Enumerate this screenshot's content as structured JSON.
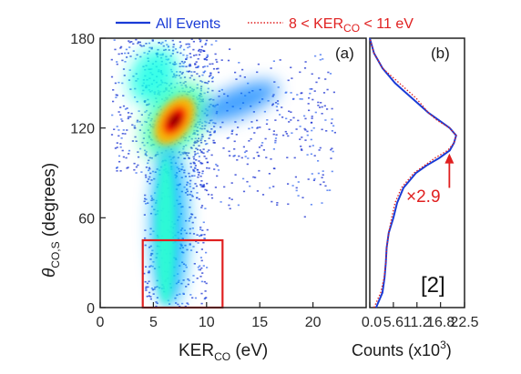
{
  "legend": {
    "all_events": "All Events",
    "selected_prefix": "8 < KER",
    "selected_sub": "CO",
    "selected_suffix": " < 11 eV",
    "all_events_color": "#1a3bd6",
    "selected_color": "#e02020"
  },
  "panel_a": {
    "label": "(a)",
    "xlabel_main": "KER",
    "xlabel_sub": "CO",
    "xlabel_unit": " (eV)",
    "ylabel_theta": "θ",
    "ylabel_sub": "CO,S",
    "ylabel_unit": " (degrees)",
    "x_ticks": [
      "0",
      "5",
      "10",
      "15",
      "20"
    ],
    "y_ticks": [
      "0",
      "60",
      "120",
      "180"
    ],
    "box_color": "#e02020"
  },
  "panel_b": {
    "label": "(b)",
    "xlabel_main": "Counts (x10",
    "xlabel_sup": "3",
    "xlabel_end": ")",
    "x_ticks": [
      "0.0",
      "5.6",
      "11.2",
      "16.8",
      "22.5"
    ],
    "scale_annotation": "×2.9"
  },
  "reference": "[2]",
  "chart_data": [
    {
      "type": "heatmap",
      "title": "",
      "xlabel": "KER_CO (eV)",
      "ylabel": "θ_CO,S (degrees)",
      "xlim": [
        0,
        25
      ],
      "ylim": [
        0,
        180
      ],
      "x_ticks": [
        0,
        5,
        10,
        15,
        20
      ],
      "y_ticks": [
        0,
        60,
        120,
        180
      ],
      "grid": false,
      "colormap": "jet",
      "intensity_features": [
        {
          "feature": "dominant maximum",
          "ker": 7,
          "theta": 125,
          "relative_intensity": 1.0
        },
        {
          "feature": "upper ridge",
          "ker": 5,
          "theta": 155,
          "relative_intensity": 0.55
        },
        {
          "feature": "vertical stem",
          "ker": 6.5,
          "theta_range": [
            0,
            110
          ],
          "relative_intensity": 0.45
        },
        {
          "feature": "right branch",
          "ker_range": [
            9,
            17
          ],
          "theta_range": [
            110,
            165
          ],
          "relative_intensity": 0.25
        }
      ],
      "selection_box": {
        "ker_range": [
          4,
          11.5
        ],
        "theta_range": [
          0,
          45
        ]
      }
    },
    {
      "type": "line",
      "title": "",
      "xlabel": "Counts (x10^3)",
      "ylabel": "θ_CO,S (degrees)",
      "xlim": [
        0,
        22.5
      ],
      "ylim": [
        0,
        180
      ],
      "x_ticks": [
        0,
        5.6,
        11.2,
        16.8,
        22.5
      ],
      "legend_position": "top",
      "series": [
        {
          "name": "All Events",
          "style": "solid",
          "color": "#1a3bd6",
          "theta": [
            0,
            10,
            20,
            30,
            40,
            50,
            60,
            70,
            80,
            90,
            95,
            100,
            105,
            110,
            115,
            120,
            125,
            130,
            135,
            140,
            145,
            150,
            160,
            170,
            180
          ],
          "counts": [
            1.5,
            3.0,
            3.5,
            3.8,
            4.0,
            4.5,
            5.6,
            6.5,
            8.0,
            11.0,
            13.5,
            16.5,
            19.0,
            20.0,
            20.5,
            19.0,
            16.5,
            14.0,
            12.0,
            10.0,
            8.0,
            6.0,
            3.0,
            1.0,
            0.0
          ]
        },
        {
          "name": "8 < KER_CO < 11 eV",
          "style": "dotted",
          "scale_factor": 2.9,
          "color": "#e02020",
          "theta": [
            0,
            10,
            20,
            30,
            40,
            50,
            60,
            70,
            80,
            90,
            95,
            100,
            105,
            110,
            115,
            120,
            125,
            130,
            135,
            140,
            145,
            150,
            155,
            160,
            170,
            180
          ],
          "counts": [
            1.0,
            2.6,
            3.4,
            3.8,
            4.0,
            4.5,
            5.2,
            6.0,
            7.5,
            10.5,
            13.0,
            15.5,
            18.5,
            20.0,
            20.5,
            19.0,
            16.0,
            14.0,
            12.5,
            11.0,
            9.0,
            7.0,
            5.0,
            3.0,
            1.0,
            0.0
          ]
        }
      ]
    }
  ]
}
